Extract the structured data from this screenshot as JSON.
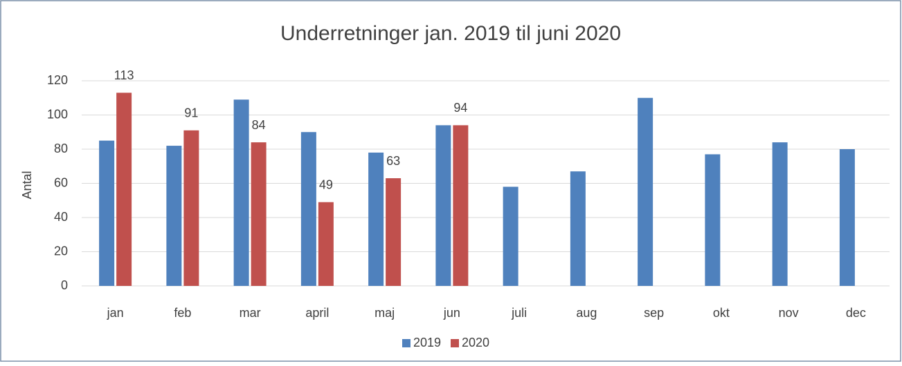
{
  "chart_data": {
    "type": "bar",
    "title": "Underretninger jan. 2019 til juni 2020",
    "y_label": "Antal",
    "categories": [
      "jan",
      "feb",
      "mar",
      "april",
      "maj",
      "jun",
      "juli",
      "aug",
      "sep",
      "okt",
      "nov",
      "dec"
    ],
    "series": [
      {
        "name": "2019",
        "color": "#4f81bd",
        "values": [
          85,
          82,
          109,
          90,
          78,
          94,
          58,
          67,
          110,
          77,
          84,
          80
        ]
      },
      {
        "name": "2020",
        "color": "#c0504d",
        "values": [
          113,
          91,
          84,
          49,
          63,
          94,
          null,
          null,
          null,
          null,
          null,
          null
        ],
        "show_labels": true
      }
    ],
    "ylim": [
      0,
      120
    ],
    "yticks": [
      0,
      20,
      40,
      60,
      80,
      100,
      120
    ],
    "grid": true,
    "legend": "bottom"
  }
}
